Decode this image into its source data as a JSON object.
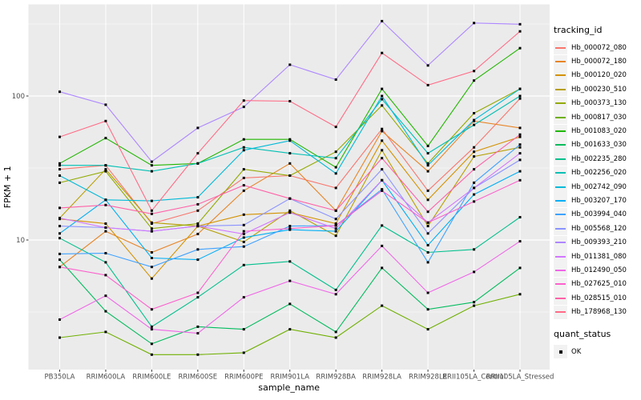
{
  "legend": {
    "tracking_title": "tracking_id",
    "quant_title": "quant_status",
    "quant_ok_label": "OK"
  },
  "chart_data": {
    "type": "line",
    "title": "",
    "xlabel": "sample_name",
    "ylabel": "FPKM + 1",
    "y_scale": "log10",
    "yticks": [
      100,
      10
    ],
    "y_minor_gridlines": [
      316.23,
      31.623,
      3.1623
    ],
    "ylim": [
      1.26,
      435
    ],
    "grid": true,
    "legend_position": "right",
    "panel_bg": "#EBEBEB",
    "grid_color": "#FFFFFF",
    "tick_label_color": "#4D4D4D",
    "axis_title_color": "#000000",
    "point_shape": "square",
    "point_color": "#000000",
    "categories": [
      "PB350LA",
      "RRIM600LA",
      "RRIM600LE",
      "RRIM600SE",
      "RRIM600PE",
      "RRIM901LA",
      "RRIM928BA",
      "RRIM928LA",
      "RRIM928LE",
      "RRII105LA_Control",
      "RRII105LA_Stressed"
    ],
    "series": [
      {
        "name": "Hb_000072_080",
        "color": "#F8766D",
        "values": [
          31,
          33,
          13,
          16,
          27,
          28,
          23,
          59,
          22,
          44,
          96
        ]
      },
      {
        "name": "Hb_000072_180",
        "color": "#E88526",
        "values": [
          6.5,
          11.5,
          8.2,
          11,
          22,
          34,
          16,
          57,
          30,
          67,
          60
        ]
      },
      {
        "name": "Hb_000120_020",
        "color": "#D39200",
        "values": [
          14,
          13,
          5.4,
          12.5,
          15,
          15.5,
          13,
          49,
          19,
          41,
          52
        ]
      },
      {
        "name": "Hb_000230_510",
        "color": "#B79F00",
        "values": [
          14.2,
          31,
          13.2,
          12.5,
          9.7,
          16,
          10.7,
          42,
          12.5,
          38,
          44
        ]
      },
      {
        "name": "Hb_000373_130",
        "color": "#93AA00",
        "values": [
          25,
          30,
          12,
          13,
          31,
          28,
          41,
          86,
          34,
          76,
          112
        ]
      },
      {
        "name": "Hb_000817_030",
        "color": "#6FB000",
        "values": [
          2.1,
          2.3,
          1.6,
          1.6,
          1.65,
          2.4,
          2.1,
          3.5,
          2.4,
          3.5,
          4.2
        ]
      },
      {
        "name": "Hb_001083_020",
        "color": "#21B700",
        "values": [
          34,
          51,
          33,
          34,
          50,
          50,
          32,
          112,
          45,
          128,
          215
        ]
      },
      {
        "name": "Hb_001633_030",
        "color": "#00BC5D",
        "values": [
          7.3,
          3.2,
          1.9,
          2.5,
          2.4,
          3.6,
          2.3,
          6.4,
          3.3,
          3.7,
          6.4
        ]
      },
      {
        "name": "Hb_002235_280",
        "color": "#00C08D",
        "values": [
          10.3,
          7,
          2.5,
          4,
          6.7,
          7.1,
          4.5,
          12.6,
          8.2,
          8.6,
          14.4
        ]
      },
      {
        "name": "Hb_002256_020",
        "color": "#00C0B4",
        "values": [
          33,
          33,
          30,
          34,
          44,
          40,
          37,
          95,
          40,
          63,
          100
        ]
      },
      {
        "name": "Hb_002742_090",
        "color": "#00BAD8",
        "values": [
          28,
          19,
          18.7,
          19.8,
          42,
          49,
          29,
          100,
          33,
          68,
          112
        ]
      },
      {
        "name": "Hb_003207_170",
        "color": "#00AFF5",
        "values": [
          11.1,
          19,
          7.5,
          7.3,
          10.4,
          11.8,
          11.5,
          26,
          9.2,
          20.7,
          30
        ]
      },
      {
        "name": "Hb_003994_040",
        "color": "#3FA2FF",
        "values": [
          8,
          8.1,
          6.5,
          8.6,
          9,
          12.5,
          12.6,
          22.5,
          7,
          25,
          46
        ]
      },
      {
        "name": "Hb_005568_120",
        "color": "#8B93FF",
        "values": [
          12.5,
          12.2,
          11.5,
          12.5,
          12.7,
          19.4,
          14,
          31,
          11.1,
          23,
          36
        ]
      },
      {
        "name": "Hb_009393_210",
        "color": "#AE87FF",
        "values": [
          107,
          87,
          35,
          60,
          84,
          165,
          130,
          331,
          163,
          321,
          315
        ]
      },
      {
        "name": "Hb_011381_080",
        "color": "#D277FF",
        "values": [
          14.2,
          12.2,
          11.5,
          12.5,
          11,
          15.5,
          12,
          26,
          13.2,
          23,
          40
        ]
      },
      {
        "name": "Hb_012490_050",
        "color": "#EF67E8",
        "values": [
          2.8,
          4.1,
          2.4,
          2.25,
          4,
          5.2,
          4.2,
          9.1,
          4.3,
          6,
          9.8
        ]
      },
      {
        "name": "Hb_027625_010",
        "color": "#FC61CD",
        "values": [
          6.5,
          5.7,
          3.3,
          4.3,
          11.5,
          12,
          12.6,
          22,
          13.2,
          18.5,
          26
        ]
      },
      {
        "name": "Hb_028515_010",
        "color": "#FF62A8",
        "values": [
          16.7,
          17.5,
          15.2,
          17.7,
          24,
          19.4,
          16,
          37,
          15.7,
          31,
          54
        ]
      },
      {
        "name": "Hb_178968_130",
        "color": "#FF6B86",
        "values": [
          52,
          67,
          16,
          40,
          93,
          92,
          61,
          199,
          119,
          149,
          281
        ]
      }
    ]
  }
}
